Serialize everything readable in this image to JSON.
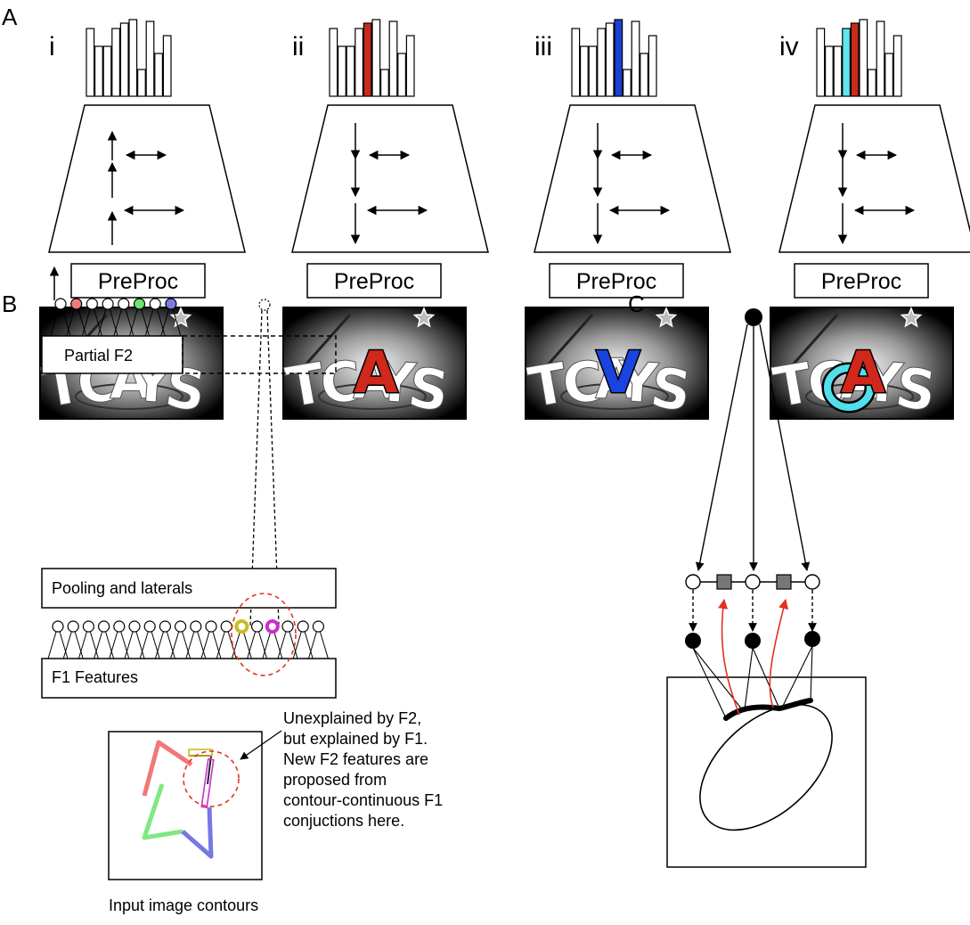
{
  "panels": {
    "a": {
      "letter": "A",
      "columns": [
        {
          "roman": "i",
          "preproc_label": "PreProc",
          "highlight_bars": [],
          "arrow_direction": "up",
          "overlay_letter": "",
          "overlay_letter_color": "",
          "ring_color": ""
        },
        {
          "roman": "ii",
          "preproc_label": "PreProc",
          "highlight_bars": [
            {
              "index": 4,
              "color": "#c62b1d"
            }
          ],
          "arrow_direction": "down",
          "overlay_letter": "A",
          "overlay_letter_color": "#d0281a",
          "ring_color": ""
        },
        {
          "roman": "iii",
          "preproc_label": "PreProc",
          "highlight_bars": [
            {
              "index": 5,
              "color": "#1c3fd6"
            }
          ],
          "arrow_direction": "down",
          "overlay_letter": "V",
          "overlay_letter_color": "#1a43e0",
          "ring_color": ""
        },
        {
          "roman": "iv",
          "preproc_label": "PreProc",
          "highlight_bars": [
            {
              "index": 3,
              "color": "#5fe6ee"
            },
            {
              "index": 4,
              "color": "#c62b1d"
            }
          ],
          "arrow_direction": "down",
          "overlay_letter": "A",
          "overlay_letter_color": "#d0281a",
          "ring_color": "#4fe0ec"
        }
      ]
    },
    "b": {
      "letter": "B",
      "partial_f2_label": "Partial F2",
      "pooling_label": "Pooling and laterals",
      "f1_label": "F1 Features",
      "annotation_lines": [
        "Unexplained by F2,",
        "but explained by F1.",
        "New F2 features are",
        "proposed from",
        "contour-continuous F1",
        "conjuctions here."
      ],
      "input_caption": "Input image contours",
      "f2_node_colors": [
        "#ffffff",
        "#f27a7a",
        "#ffffff",
        "#ffffff",
        "#ffffff",
        "#6ee36e",
        "#ffffff",
        "#7b7be0"
      ],
      "highlight_ring_colors": {
        "left": "#c9bd1e",
        "right": "#cc2ecc"
      },
      "contour_colors": {
        "top": "#f27777",
        "left": "#80e880",
        "bottom": "#7777e6"
      }
    },
    "c": {
      "letter": "C",
      "feedback_color": "#e2321f"
    }
  }
}
